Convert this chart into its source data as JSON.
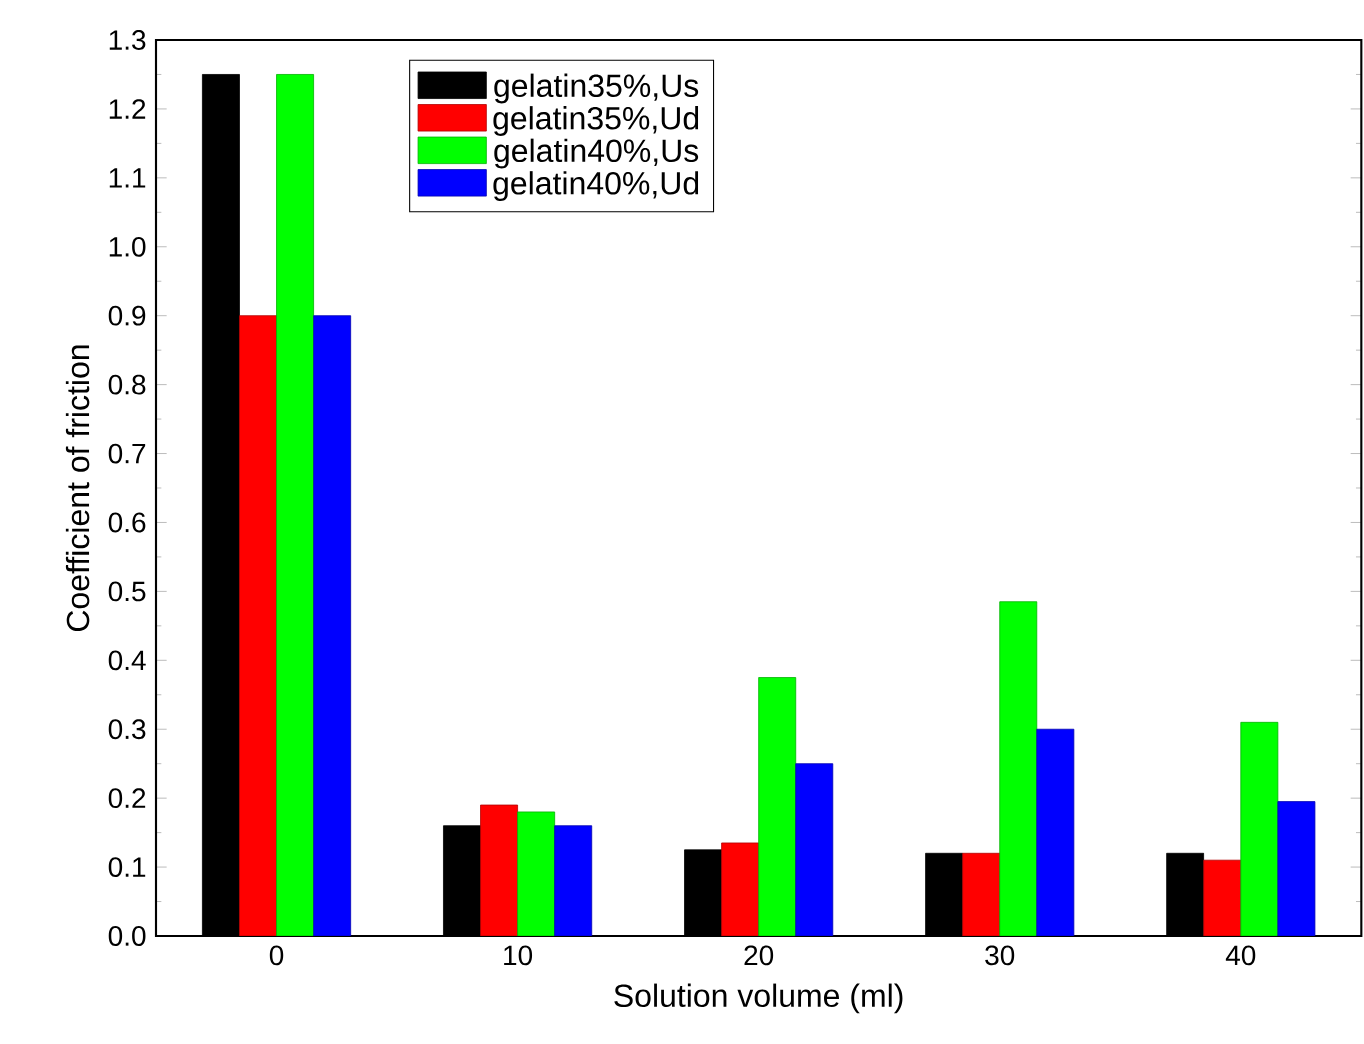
{
  "chart_data": {
    "type": "bar",
    "xlabel": "Solution volume (ml)",
    "ylabel": "Coefficient of friction",
    "categories": [
      "0",
      "10",
      "20",
      "30",
      "40"
    ],
    "series": [
      {
        "name": "gelatin35%,Us",
        "color": "#000000",
        "values": [
          1.25,
          0.16,
          0.125,
          0.12,
          0.12
        ]
      },
      {
        "name": "gelatin35%,Ud",
        "color": "#ff0000",
        "values": [
          0.9,
          0.19,
          0.135,
          0.12,
          0.11
        ]
      },
      {
        "name": "gelatin40%,Us",
        "color": "#00ff00",
        "values": [
          1.25,
          0.18,
          0.375,
          0.485,
          0.31
        ]
      },
      {
        "name": "gelatin40%,Ud",
        "color": "#0000ff",
        "values": [
          0.9,
          0.16,
          0.25,
          0.3,
          0.195
        ]
      }
    ],
    "ylim": [
      0,
      1.3
    ],
    "yticks": [
      {
        "value": 0,
        "label": "0.0"
      },
      0.1,
      0.2,
      0.3,
      0.4,
      0.5,
      0.6,
      0.7,
      0.8,
      0.9,
      {
        "value": 1.0,
        "label": "1.0"
      },
      1.1,
      1.2,
      1.3
    ],
    "legend": "top",
    "grid": false
  }
}
